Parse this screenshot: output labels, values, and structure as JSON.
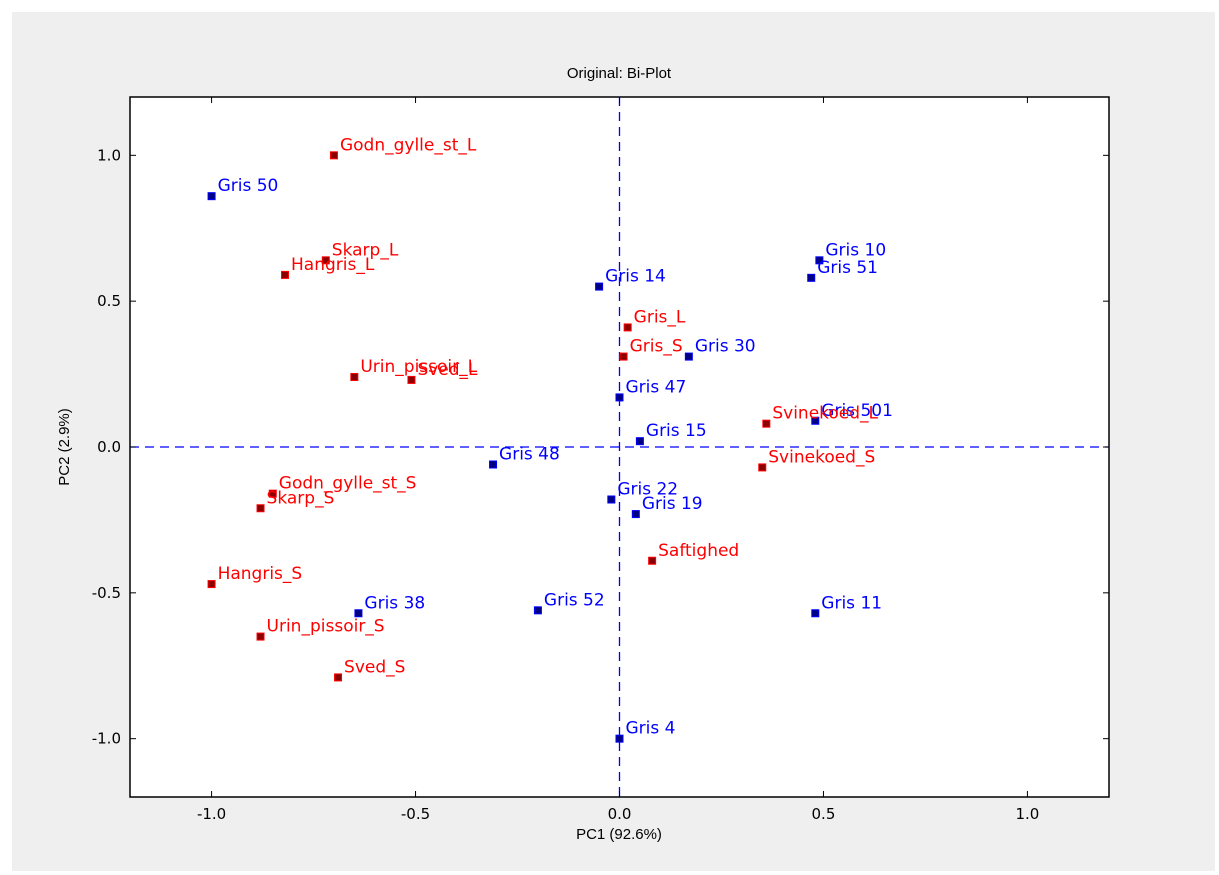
{
  "chart_data": {
    "type": "scatter",
    "title": "Original: Bi-Plot",
    "xlabel": "PC1 (92.6%)",
    "ylabel": "PC2 (2.9%)",
    "xlim": [
      -1.2,
      1.2
    ],
    "ylim": [
      -1.2,
      1.2
    ],
    "xticks": [
      -1.0,
      -0.5,
      0.0,
      0.5,
      1.0
    ],
    "yticks": [
      -1.0,
      -0.5,
      0.0,
      0.5,
      1.0
    ],
    "xtick_labels": [
      "-1.0",
      "-0.5",
      "0.0",
      "0.5",
      "1.0"
    ],
    "ytick_labels": [
      "-1.0",
      "-0.5",
      "0.0",
      "0.5",
      "1.0"
    ],
    "grid": false,
    "reference_lines": {
      "x": 0,
      "y": 0,
      "style": "dashed",
      "color": "#0000ff"
    },
    "series": [
      {
        "color": "#0000ff",
        "marker_color": "#000080",
        "points": [
          {
            "label": "Gris 50",
            "x": -1.0,
            "y": 0.86
          },
          {
            "label": "Gris 10",
            "x": 0.49,
            "y": 0.64
          },
          {
            "label": "Gris 51",
            "x": 0.47,
            "y": 0.58
          },
          {
            "label": "Gris 14",
            "x": -0.05,
            "y": 0.55
          },
          {
            "label": "Gris 30",
            "x": 0.17,
            "y": 0.31
          },
          {
            "label": "Gris 47",
            "x": 0.0,
            "y": 0.17
          },
          {
            "label": "Gris 501",
            "x": 0.48,
            "y": 0.09
          },
          {
            "label": "Gris 15",
            "x": 0.05,
            "y": 0.02
          },
          {
            "label": "Gris 48",
            "x": -0.31,
            "y": -0.06
          },
          {
            "label": "Gris 22",
            "x": -0.02,
            "y": -0.18
          },
          {
            "label": "Gris 19",
            "x": 0.04,
            "y": -0.23
          },
          {
            "label": "Gris 38",
            "x": -0.64,
            "y": -0.57
          },
          {
            "label": "Gris 52",
            "x": -0.2,
            "y": -0.56
          },
          {
            "label": "Gris 11",
            "x": 0.48,
            "y": -0.57
          },
          {
            "label": "Gris 4",
            "x": 0.0,
            "y": -1.0
          }
        ]
      },
      {
        "color": "#ff0000",
        "marker_color": "#8b0000",
        "points": [
          {
            "label": "Godn_gylle_st_L",
            "x": -0.7,
            "y": 1.0
          },
          {
            "label": "Skarp_L",
            "x": -0.72,
            "y": 0.64
          },
          {
            "label": "Hangris_L",
            "x": -0.82,
            "y": 0.59
          },
          {
            "label": "Gris_L",
            "x": 0.02,
            "y": 0.41
          },
          {
            "label": "Gris_S",
            "x": 0.01,
            "y": 0.31
          },
          {
            "label": "Urin_pissoir_L",
            "x": -0.65,
            "y": 0.24
          },
          {
            "label": "Sved_L",
            "x": -0.51,
            "y": 0.23
          },
          {
            "label": "Svinekoed_L",
            "x": 0.36,
            "y": 0.08
          },
          {
            "label": "Svinekoed_S",
            "x": 0.35,
            "y": -0.07
          },
          {
            "label": "Godn_gylle_st_S",
            "x": -0.85,
            "y": -0.16
          },
          {
            "label": "Skarp_S",
            "x": -0.88,
            "y": -0.21
          },
          {
            "label": "Saftighed",
            "x": 0.08,
            "y": -0.39
          },
          {
            "label": "Hangris_S",
            "x": -1.0,
            "y": -0.47
          },
          {
            "label": "Urin_pissoir_S",
            "x": -0.88,
            "y": -0.65
          },
          {
            "label": "Sved_S",
            "x": -0.69,
            "y": -0.79
          }
        ]
      }
    ]
  }
}
